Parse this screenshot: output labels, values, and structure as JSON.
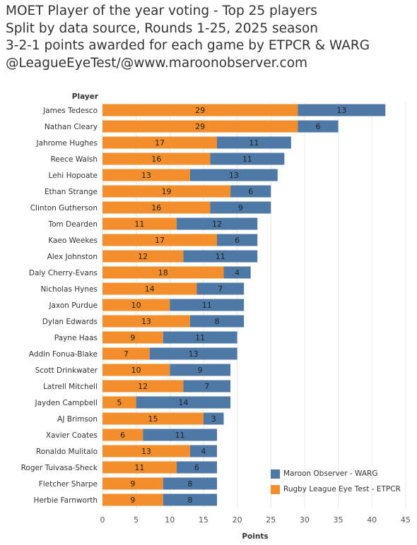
{
  "header": {
    "lines": [
      "MOET Player of the year voting - Top 25 players",
      "Split by data source, Rounds 1-25, 2025 season",
      "3-2-1 points awarded for each game by ETPCR & WARG",
      "@LeagueEyeTest/@www.maroonobserver.com"
    ]
  },
  "chart_data": {
    "type": "bar",
    "orientation": "horizontal",
    "stacked": true,
    "title": "MOET Player of the year voting - Top 25 players",
    "ylabel": "Player",
    "xlabel": "Points",
    "xlim": [
      0,
      45
    ],
    "xticks": [
      0,
      5,
      10,
      15,
      20,
      25,
      30,
      35,
      40,
      45
    ],
    "grid": true,
    "legend_position": "bottom-right",
    "categories": [
      "James Tedesco",
      "Nathan Cleary",
      "Jahrome Hughes",
      "Reece Walsh",
      "Lehi Hopoate",
      "Ethan Strange",
      "Clinton Gutherson",
      "Tom Dearden",
      "Kaeo Weekes",
      "Alex Johnston",
      "Daly Cherry-Evans",
      "Nicholas Hynes",
      "Jaxon Purdue",
      "Dylan Edwards",
      "Payne Haas",
      "Addin Fonua-Blake",
      "Scott Drinkwater",
      "Latrell Mitchell",
      "Jayden Campbell",
      "AJ Brimson",
      "Xavier Coates",
      "Ronaldo Mulitalo",
      "Roger Tuivasa-Sheck",
      "Fletcher Sharpe",
      "Herbie Farnworth"
    ],
    "series": [
      {
        "name": "Rugby League Eye Test - ETPCR",
        "color": "#F28E2B",
        "values": [
          29,
          29,
          17,
          16,
          13,
          19,
          16,
          11,
          17,
          12,
          18,
          14,
          10,
          13,
          9,
          7,
          10,
          12,
          5,
          15,
          6,
          13,
          11,
          9,
          9
        ]
      },
      {
        "name": "Maroon Observer - WARG",
        "color": "#4E79A7",
        "values": [
          13,
          6,
          11,
          11,
          13,
          6,
          9,
          12,
          6,
          11,
          4,
          7,
          11,
          8,
          11,
          13,
          9,
          7,
          14,
          3,
          11,
          4,
          6,
          8,
          8
        ]
      }
    ],
    "legend": [
      "Maroon Observer - WARG",
      "Rugby League Eye Test - ETPCR"
    ]
  }
}
